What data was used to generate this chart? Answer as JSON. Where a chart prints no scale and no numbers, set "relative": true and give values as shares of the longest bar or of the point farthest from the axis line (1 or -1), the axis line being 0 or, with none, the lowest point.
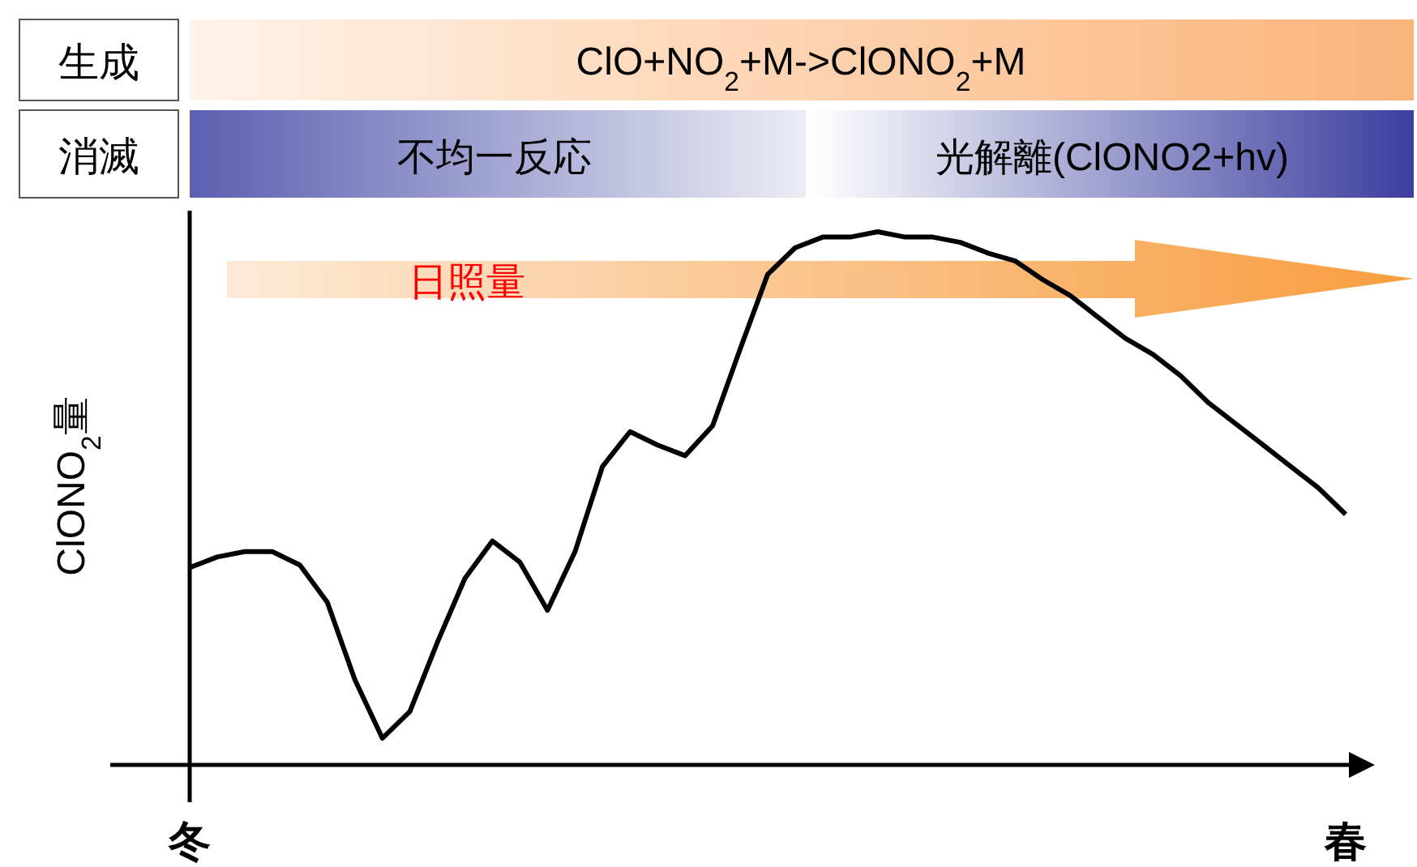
{
  "chart_data": {
    "type": "line",
    "relative": true,
    "ylabel": "ClONO$_{2}$量",
    "categories": [
      "冬",
      null,
      null,
      null,
      null,
      null,
      null,
      null,
      null,
      null,
      null,
      null,
      null,
      null,
      null,
      null,
      null,
      null,
      null,
      null,
      null,
      null,
      null,
      null,
      null,
      null,
      null,
      null,
      null,
      null,
      null,
      null,
      null,
      null,
      null,
      null,
      null,
      null,
      null,
      null,
      null,
      null,
      "春"
    ],
    "series": [
      {
        "color": "#000000",
        "values": [
          0.37,
          0.39,
          0.4,
          0.4,
          0.375,
          0.305,
          0.16,
          0.05,
          0.1,
          0.23,
          0.35,
          0.42,
          0.38,
          0.29,
          0.4,
          0.56,
          0.625,
          0.6,
          0.58,
          0.636,
          0.78,
          0.92,
          0.97,
          0.99,
          0.99,
          1,
          0.99,
          0.99,
          0.98,
          0.96,
          0.945,
          0.91,
          0.88,
          0.84,
          0.8,
          0.77,
          0.73,
          0.68,
          0.64,
          0.6,
          0.56,
          0.52,
          0.47
        ]
      }
    ],
    "marker": "none",
    "annotations": [
      "生成",
      "ClO+NO$_{2}$+M->ClONO$_{2}$+M",
      "消滅",
      "不均一反応",
      "光解離(ClONO2+hv)",
      "日照量"
    ]
  }
}
